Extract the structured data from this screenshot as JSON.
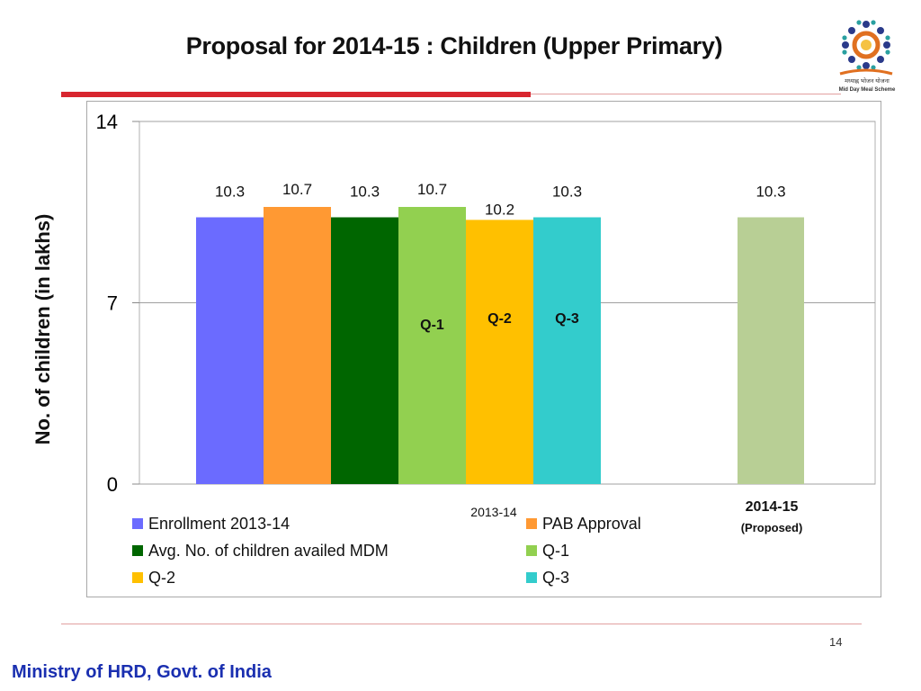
{
  "slide": {
    "title": "Proposal for 2014-15 : Children (Upper Primary)",
    "page_number": "14",
    "footer": "Ministry of HRD, Govt. of India",
    "logo": {
      "icon": "mid-day-meal-scheme-logo",
      "text_line1": "मध्याह्न भोजन योजना",
      "text_line2": "Mid Day Meal Scheme"
    },
    "accent_color": "#d8262f",
    "footer_color": "#1a2fb0"
  },
  "chart_data": {
    "type": "bar",
    "ylabel": "No. of children (in lakhs)",
    "ylim": [
      0,
      14
    ],
    "yticks": [
      0,
      7,
      14
    ],
    "grid": true,
    "legend_position": "bottom",
    "groups": [
      {
        "label": "2013-14",
        "sublabel": ""
      },
      {
        "label": "2014-15",
        "sublabel": "(Proposed)"
      }
    ],
    "series": [
      {
        "name": "Enrollment 2013-14",
        "color": "#6b6bff",
        "group": 0,
        "value": 10.3,
        "label": "10.3",
        "inner_label": ""
      },
      {
        "name": "PAB Approval",
        "color": "#ff9933",
        "group": 0,
        "value": 10.7,
        "label": "10.7",
        "inner_label": ""
      },
      {
        "name": "Avg. No. of children availed MDM",
        "color": "#006600",
        "group": 0,
        "value": 10.3,
        "label": "10.3",
        "inner_label": ""
      },
      {
        "name": "Q-1",
        "color": "#92d050",
        "group": 0,
        "value": 10.7,
        "label": "10.7",
        "inner_label": "Q-1"
      },
      {
        "name": "Q-2",
        "color": "#ffc000",
        "group": 0,
        "value": 10.2,
        "label": "10.2",
        "inner_label": "Q-2"
      },
      {
        "name": "Q-3",
        "color": "#33cccc",
        "group": 0,
        "value": 10.3,
        "label": "10.3",
        "inner_label": "Q-3"
      }
    ],
    "extra_bars": [
      {
        "group": 1,
        "value": 10.3,
        "label": "10.3",
        "color": "#b8cf95"
      }
    ]
  }
}
